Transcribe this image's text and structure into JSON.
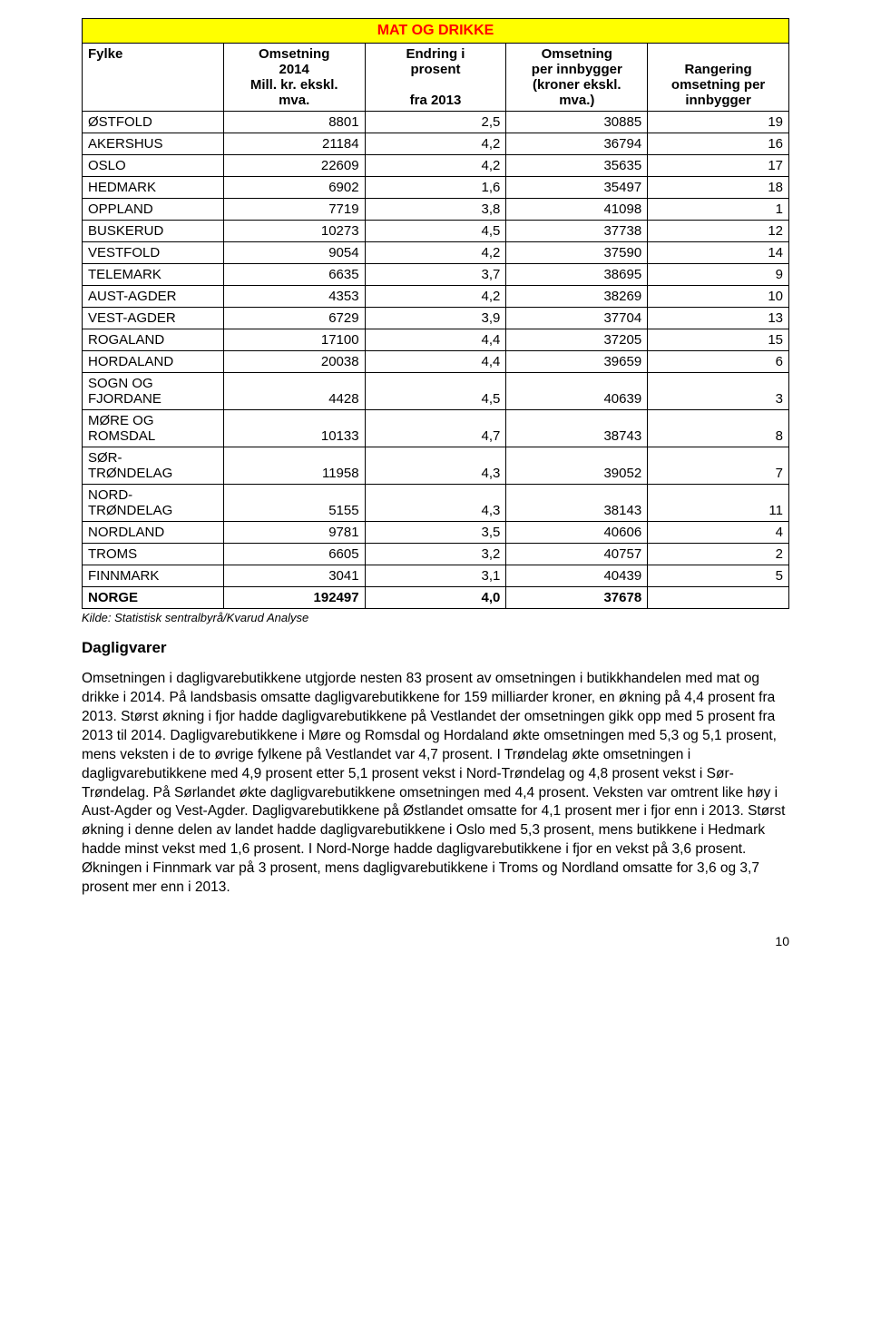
{
  "table": {
    "title": "MAT OG DRIKKE",
    "columns": {
      "c0": "Fylke",
      "c1_l1": "Omsetning",
      "c1_l2": "2014",
      "c1_l3": "Mill. kr. ekskl.",
      "c1_l4": "mva.",
      "c2_l1": "Endring i",
      "c2_l2": "prosent",
      "c2_l3": "",
      "c2_l4": "fra 2013",
      "c3_l1": "Omsetning",
      "c3_l2": "per innbygger",
      "c3_l3": "(kroner ekskl.",
      "c3_l4": "mva.)",
      "c4_l1": "",
      "c4_l2": "Rangering",
      "c4_l3": "omsetning per",
      "c4_l4": "innbygger"
    },
    "rows": [
      {
        "label": "ØSTFOLD",
        "oms": "8801",
        "endr": "2,5",
        "perinn": "30885",
        "rang": "19"
      },
      {
        "label": "AKERSHUS",
        "oms": "21184",
        "endr": "4,2",
        "perinn": "36794",
        "rang": "16"
      },
      {
        "label": "OSLO",
        "oms": "22609",
        "endr": "4,2",
        "perinn": "35635",
        "rang": "17"
      },
      {
        "label": "HEDMARK",
        "oms": "6902",
        "endr": "1,6",
        "perinn": "35497",
        "rang": "18"
      },
      {
        "label": "OPPLAND",
        "oms": "7719",
        "endr": "3,8",
        "perinn": "41098",
        "rang": "1"
      },
      {
        "label": "BUSKERUD",
        "oms": "10273",
        "endr": "4,5",
        "perinn": "37738",
        "rang": "12"
      },
      {
        "label": "VESTFOLD",
        "oms": "9054",
        "endr": "4,2",
        "perinn": "37590",
        "rang": "14"
      },
      {
        "label": "TELEMARK",
        "oms": "6635",
        "endr": "3,7",
        "perinn": "38695",
        "rang": "9"
      },
      {
        "label": "AUST-AGDER",
        "oms": "4353",
        "endr": "4,2",
        "perinn": "38269",
        "rang": "10"
      },
      {
        "label": "VEST-AGDER",
        "oms": "6729",
        "endr": "3,9",
        "perinn": "37704",
        "rang": "13"
      },
      {
        "label": "ROGALAND",
        "oms": "17100",
        "endr": "4,4",
        "perinn": "37205",
        "rang": "15"
      },
      {
        "label": "HORDALAND",
        "oms": "20038",
        "endr": "4,4",
        "perinn": "39659",
        "rang": "6"
      },
      {
        "label": "SOGN OG\nFJORDANE",
        "oms": "4428",
        "endr": "4,5",
        "perinn": "40639",
        "rang": "3"
      },
      {
        "label": "MØRE OG\nROMSDAL",
        "oms": "10133",
        "endr": "4,7",
        "perinn": "38743",
        "rang": "8"
      },
      {
        "label": "SØR-\nTRØNDELAG",
        "oms": "11958",
        "endr": "4,3",
        "perinn": "39052",
        "rang": "7"
      },
      {
        "label": "NORD-\nTRØNDELAG",
        "oms": "5155",
        "endr": "4,3",
        "perinn": "38143",
        "rang": "11"
      },
      {
        "label": "NORDLAND",
        "oms": "9781",
        "endr": "3,5",
        "perinn": "40606",
        "rang": "4"
      },
      {
        "label": "TROMS",
        "oms": "6605",
        "endr": "3,2",
        "perinn": "40757",
        "rang": "2"
      },
      {
        "label": "FINNMARK",
        "oms": "3041",
        "endr": "3,1",
        "perinn": "40439",
        "rang": "5"
      }
    ],
    "total": {
      "label": "NORGE",
      "oms": "192497",
      "endr": "4,0",
      "perinn": "37678",
      "rang": ""
    }
  },
  "source": "Kilde: Statistisk sentralbyrå/Kvarud Analyse",
  "section_heading": "Dagligvarer",
  "body_text": "Omsetningen i dagligvarebutikkene utgjorde nesten 83 prosent av omsetningen i butikkhandelen med mat og drikke i 2014. På landsbasis omsatte dagligvarebutikkene for 159 milliarder kroner, en økning på 4,4 prosent fra 2013. Størst økning i fjor hadde dagligvarebutikkene på Vestlandet der omsetningen gikk opp med 5 prosent fra 2013 til 2014. Dagligvarebutikkene i Møre og Romsdal og Hordaland økte omsetningen med 5,3 og 5,1 prosent, mens veksten i de to øvrige fylkene på Vestlandet var 4,7 prosent. I Trøndelag økte omsetningen i dagligvarebutikkene med 4,9 prosent etter 5,1 prosent vekst i Nord-Trøndelag og 4,8 prosent vekst i Sør-Trøndelag. På Sørlandet økte dagligvarebutikkene omsetningen med 4,4 prosent. Veksten var omtrent like høy i Aust-Agder og Vest-Agder. Dagligvarebutikkene på Østlandet omsatte for 4,1 prosent mer i fjor enn i 2013. Størst økning i denne delen av landet hadde dagligvarebutikkene i Oslo med 5,3 prosent, mens butikkene i Hedmark hadde minst vekst med 1,6 prosent. I Nord-Norge hadde dagligvarebutikkene i fjor en vekst på 3,6 prosent. Økningen i Finnmark var på 3 prosent, mens dagligvarebutikkene i Troms og Nordland omsatte for 3,6 og 3,7 prosent mer enn i 2013.",
  "page_number": "10"
}
